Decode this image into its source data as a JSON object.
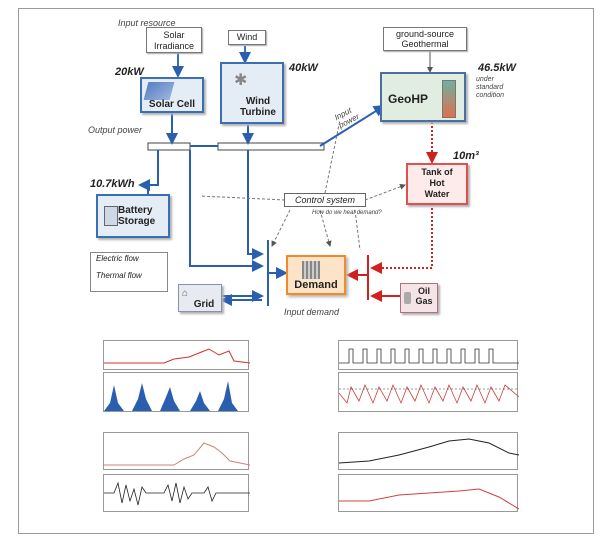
{
  "labels": {
    "input_resource": "Input resource",
    "solar_irradiance": "Solar\nIrradiance",
    "wind": "Wind",
    "ground_source": "ground-source\nGeothermal",
    "solar_cell": "Solar Cell",
    "wind_turbine": "Wind\nTurbine",
    "geohp": "GeoHP",
    "battery": "Battery\nStorage",
    "tank": "Tank of\nHot\nWater",
    "control": "Control system",
    "control_note": "How do we heat demand?",
    "demand": "Demand",
    "grid": "Grid",
    "oil_gas": "Oil\nGas",
    "output_power": "Output power",
    "input_power": "Input\npower",
    "input_demand": "Input demand",
    "electric_flow": "Electric flow",
    "thermal_flow": "Thermal flow",
    "under_std": "under\nstandard\ncondition",
    "p_solar": "20kW",
    "p_wind": "40kW",
    "p_geo": "46.5kW",
    "p_battery": "10.7kWh",
    "p_tank": "10m³"
  },
  "colors": {
    "electric": "#2a5fb0",
    "thermal": "#d02020",
    "demand_fill": "#fde4c8",
    "geo_fill": "#e1ede0"
  }
}
